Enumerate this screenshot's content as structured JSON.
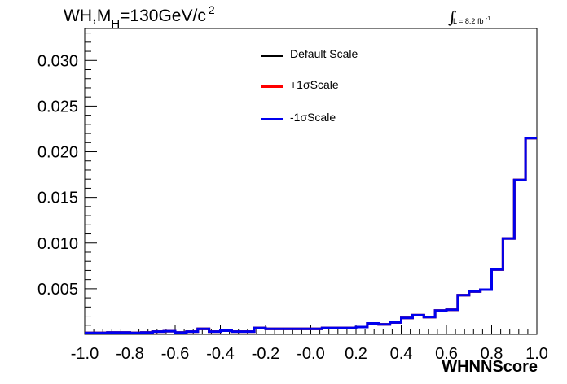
{
  "chart_data": {
    "type": "line",
    "title_main": "WH,M",
    "title_sub": "H",
    "title_rest": "=130GeV/c",
    "title_sup": "2",
    "lumi_text": "L = 8.2 fb",
    "lumi_sup": "-1",
    "xlabel": "WHNNScore",
    "ylabel": "",
    "xlim": [
      -1.0,
      1.0
    ],
    "ylim": [
      0,
      0.0335
    ],
    "x_ticks": [
      "-1.0",
      "-0.8",
      "-0.6",
      "-0.4",
      "-0.2",
      "-0.0",
      "0.2",
      "0.4",
      "0.6",
      "0.8",
      "1.0"
    ],
    "y_ticks": [
      "0.005",
      "0.010",
      "0.015",
      "0.020",
      "0.025",
      "0.030"
    ],
    "bin_edges_start": -1.0,
    "bin_width": 0.05,
    "series": [
      {
        "name": "Default Scale",
        "color": "#000000",
        "values": [
          0.00015,
          0.00015,
          0.0002,
          0.0002,
          0.00015,
          0.0002,
          0.0003,
          0.00035,
          0.0002,
          0.0003,
          0.0006,
          0.0003,
          0.0004,
          0.0003,
          0.0003,
          0.0007,
          0.0006,
          0.0006,
          0.0006,
          0.0006,
          0.0006,
          0.0007,
          0.0007,
          0.0007,
          0.0008,
          0.0012,
          0.0011,
          0.0013,
          0.0018,
          0.0021,
          0.0019,
          0.0026,
          0.0027,
          0.0043,
          0.0047,
          0.0049,
          0.0071,
          0.0105,
          0.0169,
          0.0215
        ]
      },
      {
        "name": "+1σScale",
        "color": "#ff0000",
        "values": [
          0.00015,
          0.00015,
          0.0002,
          0.0002,
          0.00015,
          0.0002,
          0.0003,
          0.00035,
          0.0002,
          0.0003,
          0.0006,
          0.0003,
          0.0004,
          0.0003,
          0.0003,
          0.0007,
          0.0006,
          0.0006,
          0.0006,
          0.0006,
          0.0006,
          0.0007,
          0.0007,
          0.0007,
          0.0008,
          0.0012,
          0.0011,
          0.0013,
          0.0018,
          0.0021,
          0.0019,
          0.0026,
          0.0027,
          0.0043,
          0.0047,
          0.0049,
          0.0071,
          0.0105,
          0.0169,
          0.0215
        ]
      },
      {
        "name": "-1σScale",
        "color": "#0000ee",
        "values": [
          0.00015,
          0.00015,
          0.0002,
          0.0002,
          0.00015,
          0.0002,
          0.0003,
          0.00035,
          0.0002,
          0.0003,
          0.0006,
          0.0003,
          0.0004,
          0.0003,
          0.0003,
          0.0007,
          0.0006,
          0.0006,
          0.0006,
          0.0006,
          0.0006,
          0.0007,
          0.0007,
          0.0007,
          0.0008,
          0.0012,
          0.0011,
          0.0013,
          0.0018,
          0.0021,
          0.0019,
          0.0026,
          0.0027,
          0.0043,
          0.0047,
          0.0049,
          0.0071,
          0.0105,
          0.0169,
          0.0215
        ]
      }
    ],
    "legend_position": "top-center",
    "grid": false
  }
}
